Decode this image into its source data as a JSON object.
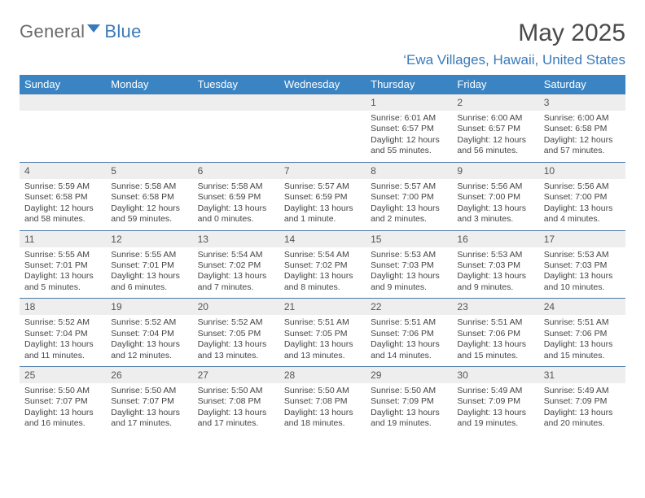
{
  "logo": {
    "word1": "General",
    "word2": "Blue"
  },
  "title": "May 2025",
  "location": "‘Ewa Villages, Hawaii, United States",
  "colors": {
    "header_bg": "#3a84c4",
    "header_text": "#ffffff",
    "numrow_bg": "#eeeeee",
    "numrow_border": "#4a7aa8",
    "brand_blue": "#3a7ab8",
    "brand_gray": "#6a6a6a",
    "body_text": "#444444",
    "page_bg": "#ffffff"
  },
  "typography": {
    "title_fontsize": 30,
    "location_fontsize": 17,
    "header_fontsize": 13,
    "daynum_fontsize": 12,
    "cell_fontsize": 10.5
  },
  "headers": [
    "Sunday",
    "Monday",
    "Tuesday",
    "Wednesday",
    "Thursday",
    "Friday",
    "Saturday"
  ],
  "weeks": [
    {
      "nums": [
        "",
        "",
        "",
        "",
        "1",
        "2",
        "3"
      ],
      "data": [
        {},
        {},
        {},
        {},
        {
          "sunrise": "Sunrise: 6:01 AM",
          "sunset": "Sunset: 6:57 PM",
          "d1": "Daylight: 12 hours",
          "d2": "and 55 minutes."
        },
        {
          "sunrise": "Sunrise: 6:00 AM",
          "sunset": "Sunset: 6:57 PM",
          "d1": "Daylight: 12 hours",
          "d2": "and 56 minutes."
        },
        {
          "sunrise": "Sunrise: 6:00 AM",
          "sunset": "Sunset: 6:58 PM",
          "d1": "Daylight: 12 hours",
          "d2": "and 57 minutes."
        }
      ]
    },
    {
      "nums": [
        "4",
        "5",
        "6",
        "7",
        "8",
        "9",
        "10"
      ],
      "data": [
        {
          "sunrise": "Sunrise: 5:59 AM",
          "sunset": "Sunset: 6:58 PM",
          "d1": "Daylight: 12 hours",
          "d2": "and 58 minutes."
        },
        {
          "sunrise": "Sunrise: 5:58 AM",
          "sunset": "Sunset: 6:58 PM",
          "d1": "Daylight: 12 hours",
          "d2": "and 59 minutes."
        },
        {
          "sunrise": "Sunrise: 5:58 AM",
          "sunset": "Sunset: 6:59 PM",
          "d1": "Daylight: 13 hours",
          "d2": "and 0 minutes."
        },
        {
          "sunrise": "Sunrise: 5:57 AM",
          "sunset": "Sunset: 6:59 PM",
          "d1": "Daylight: 13 hours",
          "d2": "and 1 minute."
        },
        {
          "sunrise": "Sunrise: 5:57 AM",
          "sunset": "Sunset: 7:00 PM",
          "d1": "Daylight: 13 hours",
          "d2": "and 2 minutes."
        },
        {
          "sunrise": "Sunrise: 5:56 AM",
          "sunset": "Sunset: 7:00 PM",
          "d1": "Daylight: 13 hours",
          "d2": "and 3 minutes."
        },
        {
          "sunrise": "Sunrise: 5:56 AM",
          "sunset": "Sunset: 7:00 PM",
          "d1": "Daylight: 13 hours",
          "d2": "and 4 minutes."
        }
      ]
    },
    {
      "nums": [
        "11",
        "12",
        "13",
        "14",
        "15",
        "16",
        "17"
      ],
      "data": [
        {
          "sunrise": "Sunrise: 5:55 AM",
          "sunset": "Sunset: 7:01 PM",
          "d1": "Daylight: 13 hours",
          "d2": "and 5 minutes."
        },
        {
          "sunrise": "Sunrise: 5:55 AM",
          "sunset": "Sunset: 7:01 PM",
          "d1": "Daylight: 13 hours",
          "d2": "and 6 minutes."
        },
        {
          "sunrise": "Sunrise: 5:54 AM",
          "sunset": "Sunset: 7:02 PM",
          "d1": "Daylight: 13 hours",
          "d2": "and 7 minutes."
        },
        {
          "sunrise": "Sunrise: 5:54 AM",
          "sunset": "Sunset: 7:02 PM",
          "d1": "Daylight: 13 hours",
          "d2": "and 8 minutes."
        },
        {
          "sunrise": "Sunrise: 5:53 AM",
          "sunset": "Sunset: 7:03 PM",
          "d1": "Daylight: 13 hours",
          "d2": "and 9 minutes."
        },
        {
          "sunrise": "Sunrise: 5:53 AM",
          "sunset": "Sunset: 7:03 PM",
          "d1": "Daylight: 13 hours",
          "d2": "and 9 minutes."
        },
        {
          "sunrise": "Sunrise: 5:53 AM",
          "sunset": "Sunset: 7:03 PM",
          "d1": "Daylight: 13 hours",
          "d2": "and 10 minutes."
        }
      ]
    },
    {
      "nums": [
        "18",
        "19",
        "20",
        "21",
        "22",
        "23",
        "24"
      ],
      "data": [
        {
          "sunrise": "Sunrise: 5:52 AM",
          "sunset": "Sunset: 7:04 PM",
          "d1": "Daylight: 13 hours",
          "d2": "and 11 minutes."
        },
        {
          "sunrise": "Sunrise: 5:52 AM",
          "sunset": "Sunset: 7:04 PM",
          "d1": "Daylight: 13 hours",
          "d2": "and 12 minutes."
        },
        {
          "sunrise": "Sunrise: 5:52 AM",
          "sunset": "Sunset: 7:05 PM",
          "d1": "Daylight: 13 hours",
          "d2": "and 13 minutes."
        },
        {
          "sunrise": "Sunrise: 5:51 AM",
          "sunset": "Sunset: 7:05 PM",
          "d1": "Daylight: 13 hours",
          "d2": "and 13 minutes."
        },
        {
          "sunrise": "Sunrise: 5:51 AM",
          "sunset": "Sunset: 7:06 PM",
          "d1": "Daylight: 13 hours",
          "d2": "and 14 minutes."
        },
        {
          "sunrise": "Sunrise: 5:51 AM",
          "sunset": "Sunset: 7:06 PM",
          "d1": "Daylight: 13 hours",
          "d2": "and 15 minutes."
        },
        {
          "sunrise": "Sunrise: 5:51 AM",
          "sunset": "Sunset: 7:06 PM",
          "d1": "Daylight: 13 hours",
          "d2": "and 15 minutes."
        }
      ]
    },
    {
      "nums": [
        "25",
        "26",
        "27",
        "28",
        "29",
        "30",
        "31"
      ],
      "data": [
        {
          "sunrise": "Sunrise: 5:50 AM",
          "sunset": "Sunset: 7:07 PM",
          "d1": "Daylight: 13 hours",
          "d2": "and 16 minutes."
        },
        {
          "sunrise": "Sunrise: 5:50 AM",
          "sunset": "Sunset: 7:07 PM",
          "d1": "Daylight: 13 hours",
          "d2": "and 17 minutes."
        },
        {
          "sunrise": "Sunrise: 5:50 AM",
          "sunset": "Sunset: 7:08 PM",
          "d1": "Daylight: 13 hours",
          "d2": "and 17 minutes."
        },
        {
          "sunrise": "Sunrise: 5:50 AM",
          "sunset": "Sunset: 7:08 PM",
          "d1": "Daylight: 13 hours",
          "d2": "and 18 minutes."
        },
        {
          "sunrise": "Sunrise: 5:50 AM",
          "sunset": "Sunset: 7:09 PM",
          "d1": "Daylight: 13 hours",
          "d2": "and 19 minutes."
        },
        {
          "sunrise": "Sunrise: 5:49 AM",
          "sunset": "Sunset: 7:09 PM",
          "d1": "Daylight: 13 hours",
          "d2": "and 19 minutes."
        },
        {
          "sunrise": "Sunrise: 5:49 AM",
          "sunset": "Sunset: 7:09 PM",
          "d1": "Daylight: 13 hours",
          "d2": "and 20 minutes."
        }
      ]
    }
  ]
}
